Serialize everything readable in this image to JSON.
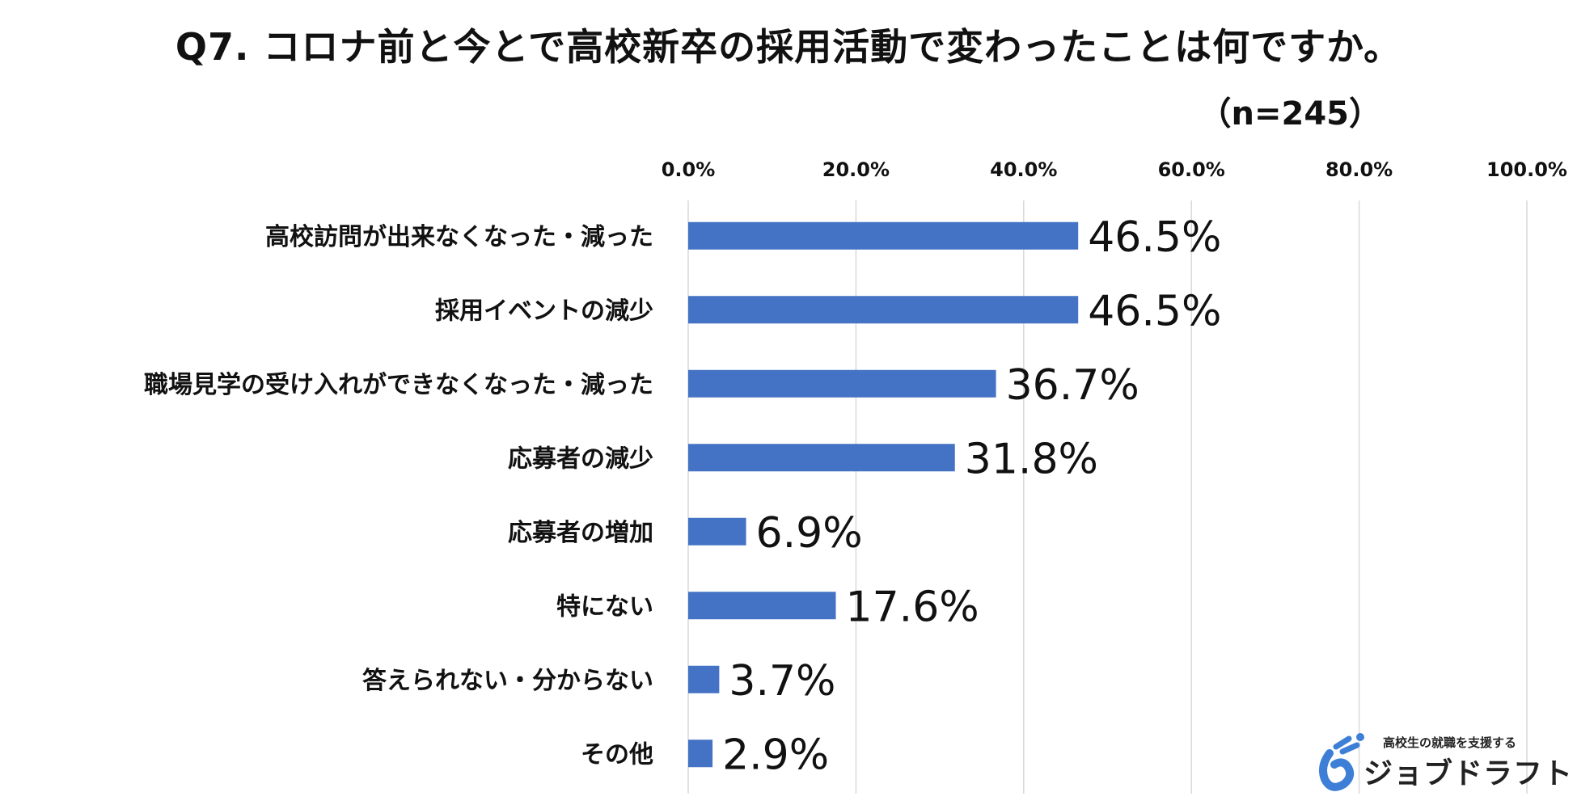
{
  "page": {
    "title": "Q7. コロナ前と今とで高校新卒の採用活動で変わったことは何ですか。",
    "n_label": "（n=245）"
  },
  "logo": {
    "icon": "job-draft-logo-icon",
    "tagline": "高校生の就職を支援する",
    "name": "ジョブドラフト"
  },
  "chart_data": {
    "type": "bar",
    "orientation": "horizontal",
    "title": "Q7. コロナ前と今とで高校新卒の採用活動で変わったことは何ですか。",
    "xlabel": "",
    "ylabel": "",
    "xlim": [
      0,
      100
    ],
    "ticks": [
      0,
      20,
      40,
      60,
      80,
      100
    ],
    "tick_labels": [
      "0.0%",
      "20.0%",
      "40.0%",
      "60.0%",
      "80.0%",
      "100.0%"
    ],
    "grid": true,
    "legend": "none",
    "bar_color": "#4472C4",
    "categories": [
      "高校訪問が出来なくなった・減った",
      "採用イベントの減少",
      "職場見学の受け入れができなくなった・減った",
      "応募者の減少",
      "応募者の増加",
      "特にない",
      "答えられない・分からない",
      "その他"
    ],
    "values": [
      46.5,
      46.5,
      36.7,
      31.8,
      6.9,
      17.6,
      3.7,
      2.9
    ],
    "value_labels": [
      "46.5%",
      "46.5%",
      "36.7%",
      "31.8%",
      "6.9%",
      "17.6%",
      "3.7%",
      "2.9%"
    ]
  }
}
